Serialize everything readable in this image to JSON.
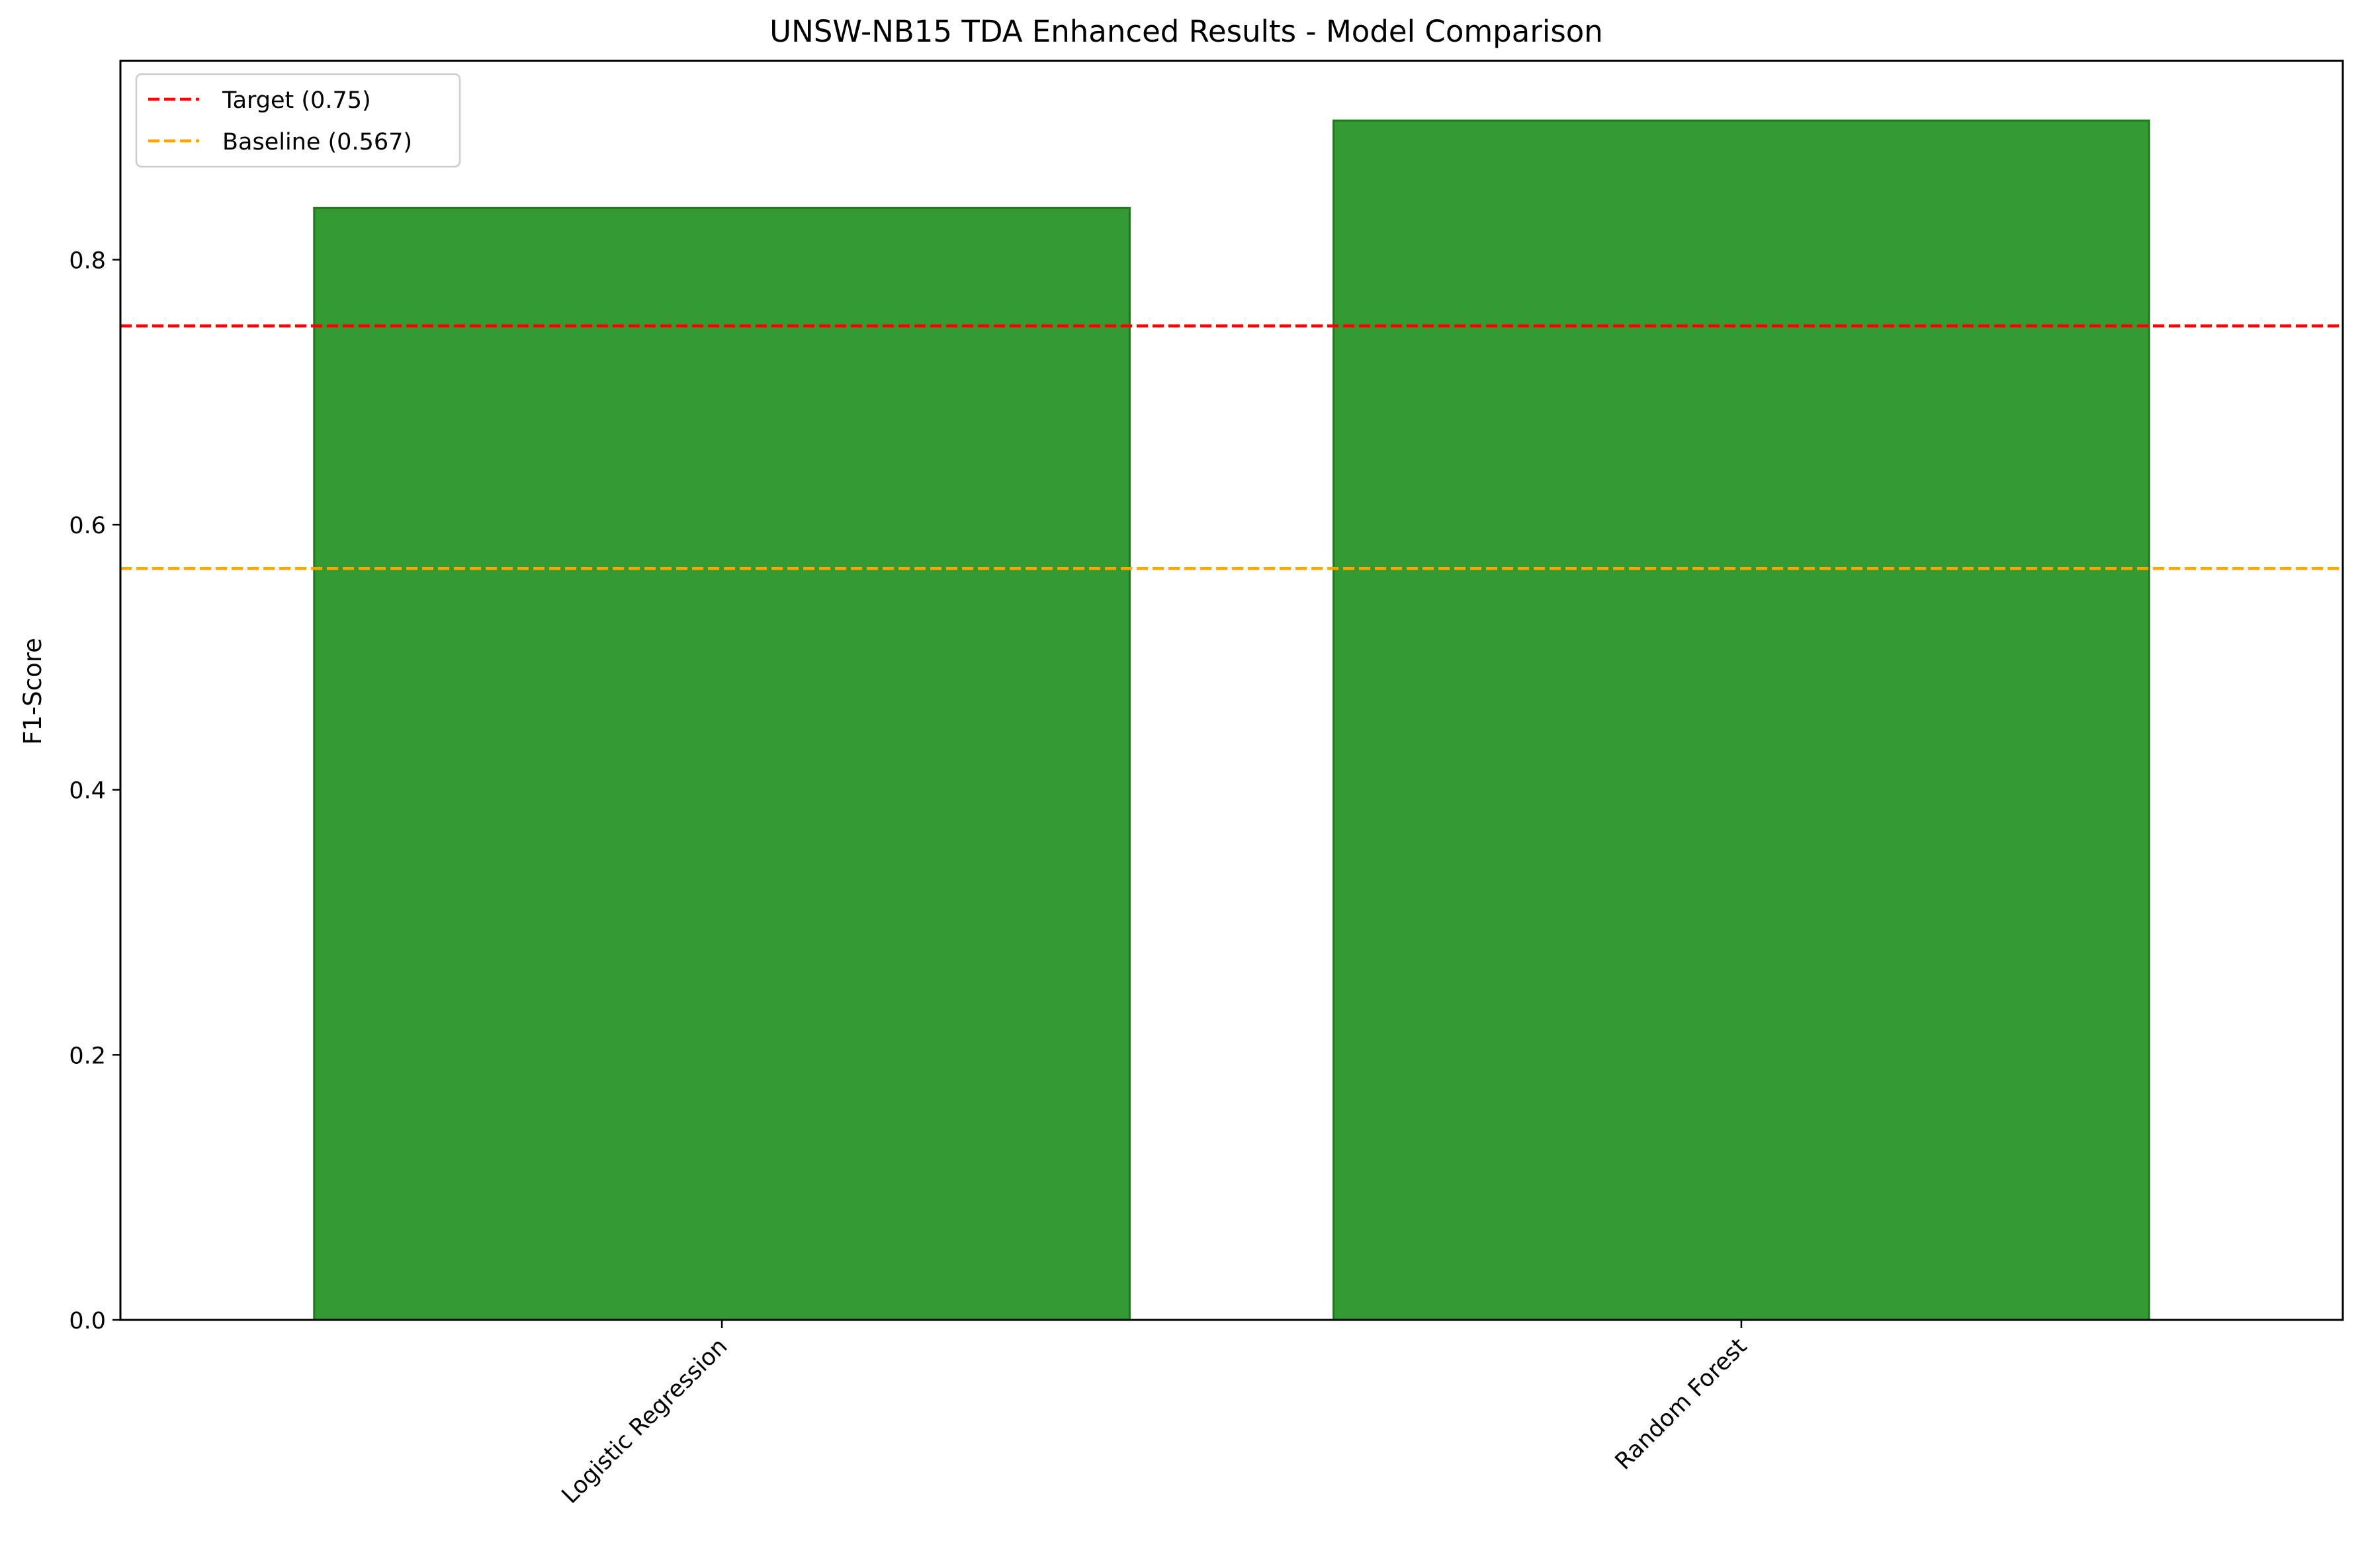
{
  "chart_data": {
    "type": "bar",
    "title": "UNSW-NB15 TDA Enhanced Results - Model Comparison",
    "xlabel": "",
    "ylabel": "F1-Score",
    "categories": [
      "Logistic Regression",
      "Random Forest"
    ],
    "values": [
      0.839,
      0.905
    ],
    "ylim": [
      0,
      0.95
    ],
    "yticks": [
      "0.0",
      "0.2",
      "0.4",
      "0.6",
      "0.8"
    ],
    "ytick_values": [
      0.0,
      0.2,
      0.4,
      0.6,
      0.8
    ],
    "bar_color": "#339933",
    "bar_edge_color": "#1f7a1f",
    "reference_lines": [
      {
        "label": "Target (0.75)",
        "value": 0.75,
        "color": "#ff0000"
      },
      {
        "label": "Baseline (0.567)",
        "value": 0.567,
        "color": "#ffa500"
      }
    ],
    "legend_position": "top-left",
    "grid": false
  }
}
